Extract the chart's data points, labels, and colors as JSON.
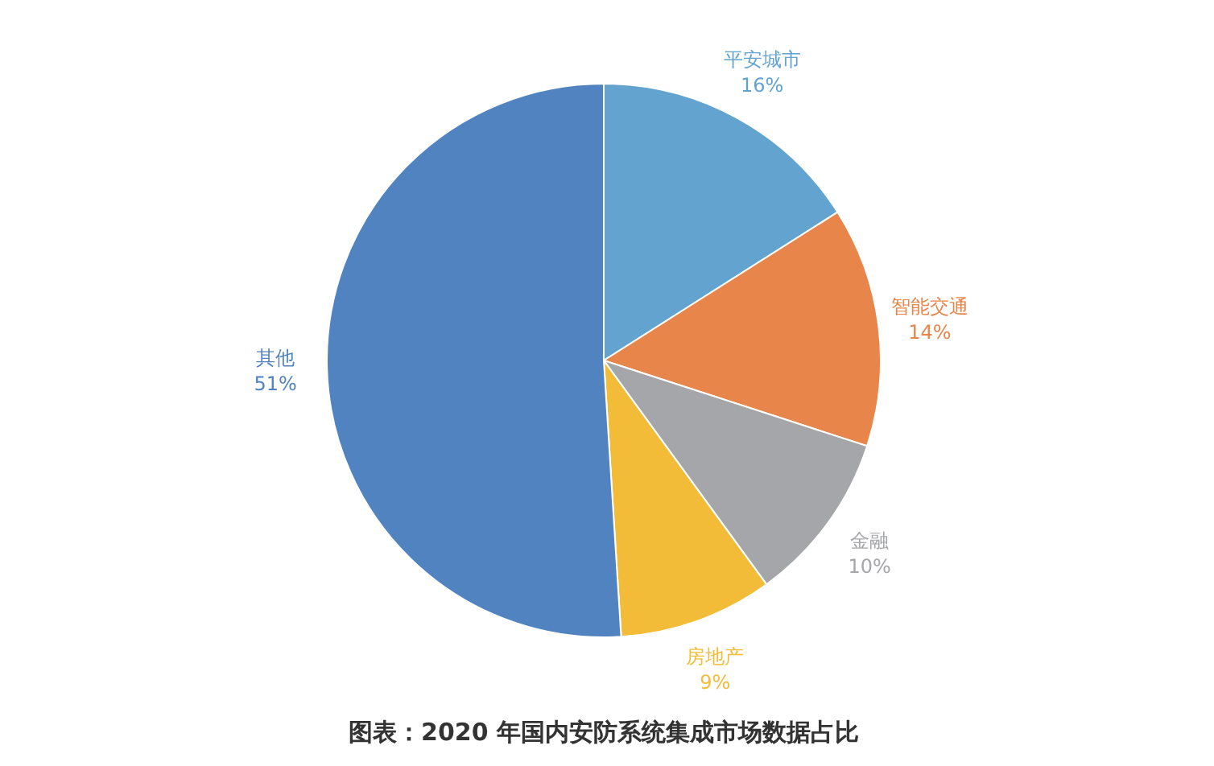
{
  "chart_data": {
    "type": "pie",
    "title": "图表：2020 年国内安防系统集成市场数据占比",
    "categories": [
      "平安城市",
      "智能交通",
      "金融",
      "房地产",
      "其他"
    ],
    "values": [
      16,
      14,
      10,
      9,
      51
    ],
    "value_labels": [
      "16%",
      "14%",
      "10%",
      "9%",
      "51%"
    ],
    "colors": [
      "#62a3d0",
      "#e8854a",
      "#a5a6a9",
      "#f2bc38",
      "#5183c1"
    ],
    "legend": false
  }
}
